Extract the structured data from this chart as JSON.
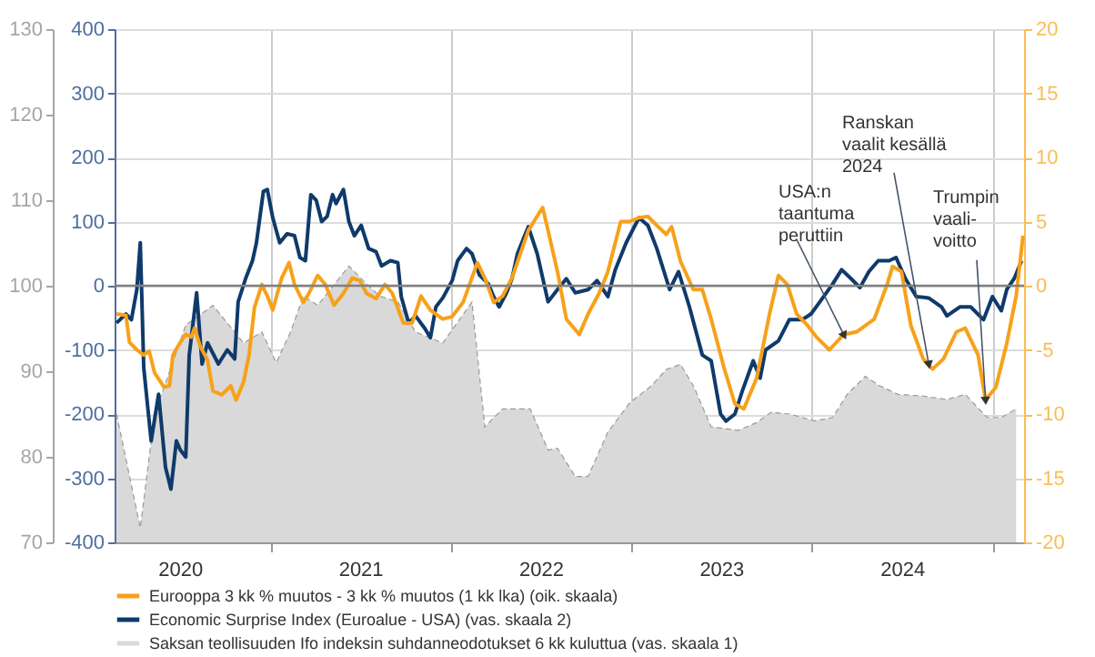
{
  "chart_data": {
    "type": "line",
    "xlim": [
      "2020-02-20",
      "2025-03-05"
    ],
    "xticks": [
      {
        "value": "2020-07-01",
        "label": "2020"
      },
      {
        "value": "2021-07-01",
        "label": "2021"
      },
      {
        "value": "2022-07-01",
        "label": "2022"
      },
      {
        "value": "2023-07-01",
        "label": "2023"
      },
      {
        "value": "2024-07-01",
        "label": "2024"
      },
      {
        "value": "2021-01-01",
        "label": null
      },
      {
        "value": "2022-01-01",
        "label": null
      },
      {
        "value": "2023-01-01",
        "label": null
      },
      {
        "value": "2024-01-01",
        "label": null
      },
      {
        "value": "2025-01-01",
        "label": null
      }
    ],
    "ylim": [
      70,
      130
    ],
    "yticks": [
      70,
      80,
      90,
      100,
      110,
      120,
      130
    ],
    "y3lim": [
      -400,
      400
    ],
    "y3ticks": [
      -400,
      -300,
      -200,
      -100,
      0,
      100,
      200,
      300,
      400
    ],
    "y2lim": [
      -20,
      20
    ],
    "y2ticks": [
      -20,
      -15,
      -10,
      -5,
      0,
      5,
      10,
      15,
      20
    ],
    "grid": true,
    "legend": "bottom",
    "ref_lines": [
      {
        "axis": "y2",
        "value": 0,
        "color": "#808080"
      }
    ],
    "annotations": [
      {
        "text": "USA:n\ntaantuma\nperuttiin",
        "x": "2024-03-05",
        "y": 94.3
      },
      {
        "text": "Ranskan\nvaalit kesällä\n2024",
        "x": "2024-08-24",
        "y": 90.9
      },
      {
        "text": "Trumpin\nvaali-\nvoitto",
        "x": "2024-12-17",
        "y": 86.7
      }
    ],
    "series": [
      {
        "name": "Eurooppa 3 kk % muutos - 3 kk % muutos (1 kk lka) (oik. skaala)",
        "axis": "y2",
        "color": "#f7a11a",
        "line_style": "solid",
        "x": [
          "2020-02-24",
          "2020-03-14",
          "2020-03-21",
          "2020-04-05",
          "2020-04-19",
          "2020-04-30",
          "2020-05-11",
          "2020-05-30",
          "2020-06-10",
          "2020-06-17",
          "2020-07-02",
          "2020-07-13",
          "2020-07-24",
          "2020-07-31",
          "2020-08-11",
          "2020-08-26",
          "2020-09-06",
          "2020-09-24",
          "2020-10-12",
          "2020-10-23",
          "2020-11-07",
          "2020-11-18",
          "2020-11-29",
          "2020-12-14",
          "2020-12-25",
          "2021-01-05",
          "2021-01-23",
          "2021-02-07",
          "2021-02-18",
          "2021-03-08",
          "2021-03-19",
          "2021-04-06",
          "2021-04-21",
          "2021-05-09",
          "2021-05-28",
          "2021-06-15",
          "2021-06-30",
          "2021-07-14",
          "2021-08-02",
          "2021-08-20",
          "2021-09-04",
          "2021-09-26",
          "2021-10-14",
          "2021-11-01",
          "2021-11-20",
          "2021-12-15",
          "2022-01-03",
          "2022-01-25",
          "2022-02-23",
          "2022-03-10",
          "2022-03-28",
          "2022-04-15",
          "2022-05-04",
          "2022-06-06",
          "2022-07-05",
          "2022-07-16",
          "2022-08-04",
          "2022-08-22",
          "2022-09-17",
          "2022-10-05",
          "2022-10-27",
          "2022-11-14",
          "2022-12-10",
          "2022-12-28",
          "2023-01-16",
          "2023-02-03",
          "2023-02-21",
          "2023-03-12",
          "2023-03-23",
          "2023-04-10",
          "2023-05-06",
          "2023-05-24",
          "2023-06-11",
          "2023-07-07",
          "2023-07-29",
          "2023-08-16",
          "2023-09-11",
          "2023-10-07",
          "2023-10-25",
          "2023-11-12",
          "2023-12-01",
          "2023-12-23",
          "2024-01-10",
          "2024-02-05",
          "2024-03-05",
          "2024-03-31",
          "2024-05-06",
          "2024-06-01",
          "2024-06-12",
          "2024-06-30",
          "2024-07-19",
          "2024-08-13",
          "2024-09-01",
          "2024-09-23",
          "2024-10-19",
          "2024-11-06",
          "2024-12-02",
          "2024-12-17",
          "2025-01-07",
          "2025-01-29",
          "2025-02-17",
          "2025-03-03"
        ],
        "values": [
          -2.2,
          -2.3,
          -4.4,
          -5.0,
          -5.4,
          -5.1,
          -6.8,
          -7.9,
          -7.8,
          -5.4,
          -4.4,
          -3.8,
          -4.0,
          -3.3,
          -4.7,
          -5.8,
          -8.2,
          -8.5,
          -7.8,
          -8.9,
          -7.5,
          -5.4,
          -1.7,
          0.1,
          -0.8,
          -1.9,
          0.6,
          1.8,
          0.1,
          -1.3,
          -0.6,
          0.8,
          0.1,
          -1.5,
          -0.6,
          0.6,
          0.4,
          -0.6,
          -1.0,
          0.1,
          -0.6,
          -2.9,
          -2.9,
          -0.8,
          -1.9,
          -2.6,
          -2.4,
          -1.3,
          1.8,
          0.6,
          -1.3,
          -0.8,
          0.6,
          4.3,
          6.1,
          4.3,
          1.1,
          -2.6,
          -3.8,
          -2.2,
          -0.6,
          1.1,
          5.0,
          5.0,
          5.3,
          5.4,
          4.7,
          4.0,
          4.6,
          1.9,
          -0.3,
          -0.3,
          -2.6,
          -6.4,
          -9.2,
          -9.6,
          -7.2,
          -2.2,
          0.8,
          0.1,
          -2.2,
          -3.1,
          -4.0,
          -5.0,
          -3.8,
          -3.6,
          -2.6,
          0.1,
          1.5,
          1.1,
          -3.1,
          -5.7,
          -6.5,
          -5.7,
          -3.6,
          -3.3,
          -5.4,
          -8.9,
          -7.9,
          -4.5,
          -0.8,
          3.9
        ]
      },
      {
        "name": "Economic Surprise Index (Euroalue - USA) (vas. skaala 2)",
        "axis": "y3",
        "color": "#0f3a6b",
        "line_style": "solid",
        "x": [
          "2020-02-24",
          "2020-03-14",
          "2020-03-25",
          "2020-04-05",
          "2020-04-12",
          "2020-04-19",
          "2020-05-04",
          "2020-05-19",
          "2020-06-02",
          "2020-06-13",
          "2020-06-24",
          "2020-07-02",
          "2020-07-13",
          "2020-07-20",
          "2020-08-04",
          "2020-08-15",
          "2020-08-26",
          "2020-09-17",
          "2020-10-05",
          "2020-10-20",
          "2020-10-27",
          "2020-11-11",
          "2020-11-25",
          "2020-12-03",
          "2020-12-17",
          "2020-12-25",
          "2021-01-05",
          "2021-01-19",
          "2021-02-03",
          "2021-02-18",
          "2021-03-01",
          "2021-03-12",
          "2021-03-23",
          "2021-04-03",
          "2021-04-14",
          "2021-04-25",
          "2021-05-06",
          "2021-05-13",
          "2021-05-28",
          "2021-06-08",
          "2021-06-19",
          "2021-07-03",
          "2021-07-18",
          "2021-08-02",
          "2021-08-13",
          "2021-08-31",
          "2021-09-15",
          "2021-09-22",
          "2021-10-07",
          "2021-10-21",
          "2021-11-09",
          "2021-11-20",
          "2021-12-01",
          "2021-12-15",
          "2022-01-03",
          "2022-01-14",
          "2022-02-01",
          "2022-02-12",
          "2022-02-27",
          "2022-03-17",
          "2022-03-28",
          "2022-04-08",
          "2022-04-23",
          "2022-05-04",
          "2022-05-15",
          "2022-06-06",
          "2022-06-24",
          "2022-07-16",
          "2022-08-04",
          "2022-08-22",
          "2022-09-09",
          "2022-10-05",
          "2022-10-23",
          "2022-11-14",
          "2022-11-29",
          "2022-12-21",
          "2023-01-16",
          "2023-02-03",
          "2023-02-21",
          "2023-03-19",
          "2023-04-06",
          "2023-04-28",
          "2023-05-24",
          "2023-06-11",
          "2023-06-30",
          "2023-07-11",
          "2023-07-29",
          "2023-08-13",
          "2023-09-04",
          "2023-09-18",
          "2023-09-29",
          "2023-10-25",
          "2023-11-16",
          "2023-12-12",
          "2023-12-30",
          "2024-01-17",
          "2024-02-12",
          "2024-03-01",
          "2024-03-20",
          "2024-04-07",
          "2024-04-25",
          "2024-05-14",
          "2024-06-05",
          "2024-06-19",
          "2024-07-08",
          "2024-07-30",
          "2024-08-24",
          "2024-09-19",
          "2024-09-30",
          "2024-10-26",
          "2024-11-17",
          "2024-12-13",
          "2024-12-31",
          "2025-01-18",
          "2025-01-29",
          "2025-02-13",
          "2025-02-28"
        ],
        "values": [
          -58,
          -44,
          -53,
          -6,
          67,
          -128,
          -242,
          -169,
          -283,
          -317,
          -242,
          -256,
          -267,
          -108,
          -11,
          -122,
          -89,
          -122,
          -100,
          -114,
          -25,
          11,
          39,
          67,
          147,
          150,
          106,
          67,
          81,
          78,
          44,
          39,
          142,
          133,
          100,
          108,
          142,
          128,
          150,
          100,
          78,
          94,
          58,
          53,
          31,
          39,
          36,
          -17,
          -58,
          -47,
          -67,
          -81,
          -33,
          -19,
          8,
          39,
          58,
          50,
          17,
          3,
          -17,
          -33,
          -11,
          11,
          50,
          92,
          50,
          -25,
          -6,
          11,
          -11,
          -6,
          8,
          -17,
          25,
          67,
          106,
          94,
          58,
          -6,
          22,
          -33,
          -108,
          -117,
          -200,
          -211,
          -200,
          -164,
          -117,
          -144,
          -100,
          -86,
          -53,
          -53,
          -44,
          -25,
          3,
          25,
          11,
          -3,
          22,
          39,
          39,
          44,
          11,
          -17,
          -19,
          -33,
          -47,
          -33,
          -33,
          -53,
          -17,
          -39,
          -6,
          11,
          39
        ]
      },
      {
        "name": "Saksan teollisuuden Ifo indeksin suhdanneodotukset 6 kk kuluttua (vas. skaala 1)",
        "type": "area",
        "axis": "y",
        "color": "#d9d9d9",
        "line_style": "dashed",
        "x": [
          "2020-02-24",
          "2020-04-12",
          "2020-05-11",
          "2020-07-13",
          "2020-09-06",
          "2020-11-07",
          "2020-12-14",
          "2021-01-12",
          "2021-02-10",
          "2021-03-08",
          "2021-04-06",
          "2021-06-08",
          "2021-07-07",
          "2021-08-09",
          "2021-09-15",
          "2021-10-21",
          "2021-12-15",
          "2022-02-12",
          "2022-03-10",
          "2022-04-15",
          "2022-06-10",
          "2022-07-16",
          "2022-08-04",
          "2022-09-09",
          "2022-10-05",
          "2022-11-14",
          "2022-12-28",
          "2023-02-10",
          "2023-03-12",
          "2023-04-10",
          "2023-05-06",
          "2023-06-11",
          "2023-08-05",
          "2023-09-11",
          "2023-10-10",
          "2023-11-16",
          "2024-01-06",
          "2024-02-12",
          "2024-03-12",
          "2024-04-18",
          "2024-05-17",
          "2024-06-23",
          "2024-08-13",
          "2024-09-30",
          "2024-11-06",
          "2024-12-20",
          "2025-01-18",
          "2025-02-17"
        ],
        "values": [
          85.0,
          71.7,
          85.0,
          95.4,
          97.7,
          93.3,
          94.6,
          91.0,
          94.6,
          98.8,
          97.7,
          102.3,
          100.6,
          98.8,
          98.1,
          94.6,
          93.3,
          98.1,
          83.5,
          85.6,
          85.6,
          80.8,
          81.0,
          77.7,
          77.7,
          82.9,
          86.3,
          88.3,
          90.2,
          90.8,
          88.3,
          83.5,
          83.1,
          84.0,
          85.2,
          85.0,
          84.2,
          84.6,
          87.3,
          89.4,
          88.3,
          87.3,
          87.1,
          86.7,
          87.3,
          84.6,
          84.6,
          85.6
        ]
      }
    ]
  }
}
